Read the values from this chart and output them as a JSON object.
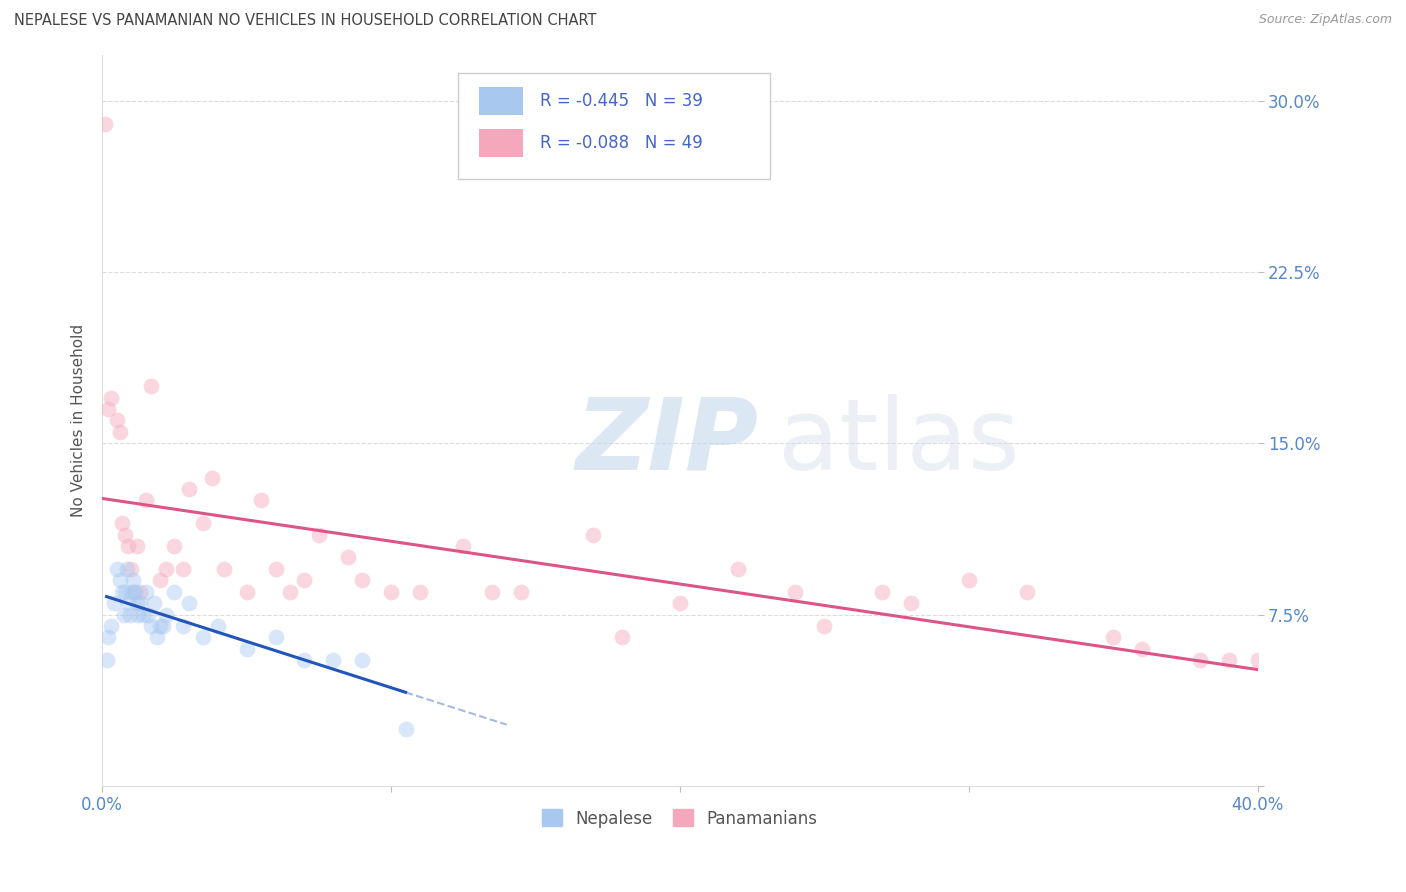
{
  "title": "NEPALESE VS PANAMANIAN NO VEHICLES IN HOUSEHOLD CORRELATION CHART",
  "source": "Source: ZipAtlas.com",
  "ylabel": "No Vehicles in Household",
  "xlim": [
    0.0,
    40.0
  ],
  "ylim": [
    0.0,
    32.0
  ],
  "x_ticks": [
    0.0,
    10.0,
    20.0,
    30.0,
    40.0
  ],
  "y_ticks": [
    0.0,
    7.5,
    15.0,
    22.5,
    30.0
  ],
  "legend_R": [
    -0.445,
    -0.088
  ],
  "legend_N": [
    39,
    49
  ],
  "legend_labels": [
    "Nepalese",
    "Panamanians"
  ],
  "nepalese_color": "#a8c8f0",
  "panamanian_color": "#f5a8bc",
  "nepalese_line_color": "#2255bb",
  "panamanian_line_color": "#dd5588",
  "background_color": "#ffffff",
  "grid_color": "#cccccc",
  "title_color": "#444444",
  "axis_tick_color": "#5588cc",
  "ylabel_color": "#555555",
  "nepalese_x": [
    0.15,
    0.2,
    0.3,
    0.4,
    0.5,
    0.6,
    0.7,
    0.75,
    0.8,
    0.85,
    0.9,
    0.95,
    1.0,
    1.05,
    1.1,
    1.15,
    1.2,
    1.25,
    1.3,
    1.4,
    1.5,
    1.6,
    1.7,
    1.8,
    1.9,
    2.0,
    2.1,
    2.2,
    2.5,
    2.8,
    3.0,
    3.5,
    4.0,
    5.0,
    6.0,
    7.0,
    8.0,
    9.0,
    10.5
  ],
  "nepalese_y": [
    5.5,
    6.5,
    7.0,
    8.0,
    9.5,
    9.0,
    8.5,
    7.5,
    8.5,
    9.5,
    8.0,
    7.5,
    8.5,
    9.0,
    8.5,
    8.5,
    8.0,
    7.5,
    8.0,
    7.5,
    8.5,
    7.5,
    7.0,
    8.0,
    6.5,
    7.0,
    7.0,
    7.5,
    8.5,
    7.0,
    8.0,
    6.5,
    7.0,
    6.0,
    6.5,
    5.5,
    5.5,
    5.5,
    2.5
  ],
  "panamanian_x": [
    0.1,
    0.2,
    0.3,
    0.5,
    0.6,
    0.7,
    0.8,
    0.9,
    1.0,
    1.2,
    1.3,
    1.5,
    1.7,
    2.0,
    2.2,
    2.5,
    2.8,
    3.0,
    3.5,
    3.8,
    4.2,
    5.0,
    5.5,
    6.0,
    6.5,
    7.0,
    7.5,
    8.5,
    9.0,
    10.0,
    11.0,
    12.5,
    13.5,
    14.5,
    17.0,
    18.0,
    20.0,
    22.0,
    24.0,
    25.0,
    27.0,
    28.0,
    30.0,
    32.0,
    35.0,
    36.0,
    38.0,
    39.0,
    40.0
  ],
  "panamanian_y": [
    29.0,
    16.5,
    17.0,
    16.0,
    15.5,
    11.5,
    11.0,
    10.5,
    9.5,
    10.5,
    8.5,
    12.5,
    17.5,
    9.0,
    9.5,
    10.5,
    9.5,
    13.0,
    11.5,
    13.5,
    9.5,
    8.5,
    12.5,
    9.5,
    8.5,
    9.0,
    11.0,
    10.0,
    9.0,
    8.5,
    8.5,
    10.5,
    8.5,
    8.5,
    11.0,
    6.5,
    8.0,
    9.5,
    8.5,
    7.0,
    8.5,
    8.0,
    9.0,
    8.5,
    6.5,
    6.0,
    5.5,
    5.5,
    5.5
  ],
  "marker_size": 130,
  "marker_alpha": 0.45
}
